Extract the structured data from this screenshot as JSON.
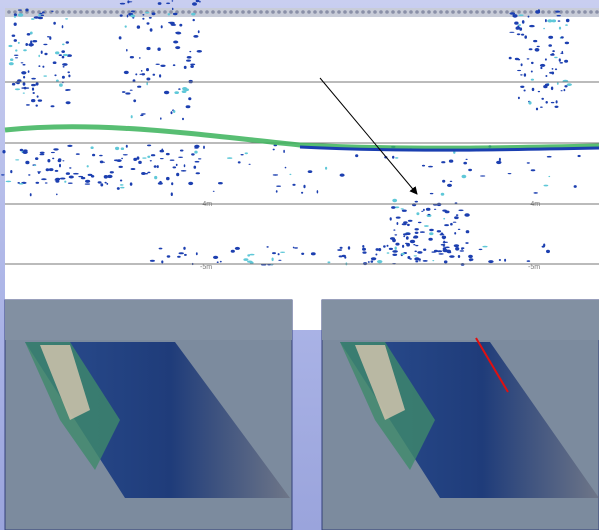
{
  "echogram": {
    "depth_labels": [
      "-4m",
      "-4m",
      "-5m",
      "-5m"
    ]
  }
}
